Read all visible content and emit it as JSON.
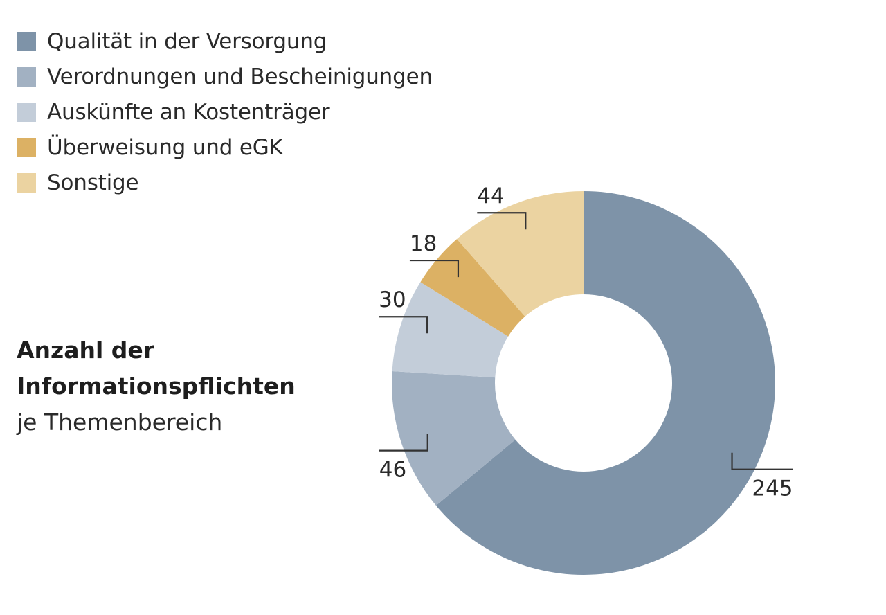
{
  "chart_data": {
    "type": "pie",
    "title_lines": [
      "Anzahl der",
      "Informationspflichten"
    ],
    "subtitle": "je Themenbereich",
    "slices": [
      {
        "label": "Qualität in der Versorgung",
        "value": 245,
        "color": "#7e93a8"
      },
      {
        "label": "Verordnungen und Bescheinigungen",
        "value": 46,
        "color": "#a2b1c2"
      },
      {
        "label": "Auskünfte an Kostenträger",
        "value": 30,
        "color": "#c3cdd9"
      },
      {
        "label": "Überweisung und eGK",
        "value": 18,
        "color": "#dcb164"
      },
      {
        "label": "Sonstige",
        "value": 44,
        "color": "#ebd3a1"
      }
    ],
    "value_labels": [
      "245",
      "46",
      "30",
      "18",
      "44"
    ],
    "donut": true,
    "start_angle": "12 o'clock",
    "direction": "clockwise",
    "legend_position": "top-left"
  }
}
